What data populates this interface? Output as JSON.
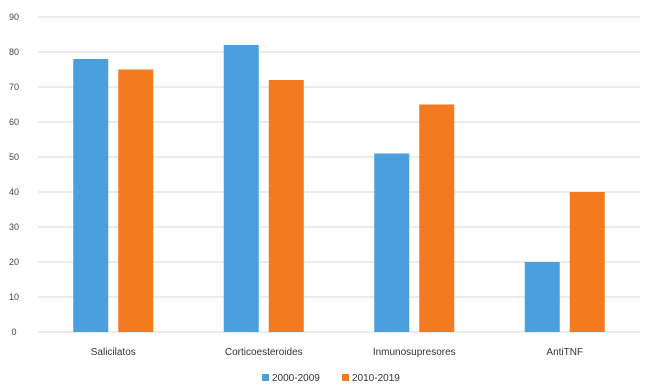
{
  "chart_data": {
    "type": "bar",
    "categories": [
      "Salicilatos",
      "Corticoesteroides",
      "Inmunosupresores",
      "AntiTNF"
    ],
    "series": [
      {
        "name": "2000-2009",
        "values": [
          78,
          82,
          51,
          20
        ],
        "color": "#4a9fdc"
      },
      {
        "name": "2010-2019",
        "values": [
          75,
          72,
          65,
          40
        ],
        "color": "#f47a1f"
      }
    ],
    "yticks": [
      "0",
      "10",
      "20",
      "30",
      "40",
      "50",
      "60",
      "70",
      "80",
      "90"
    ],
    "ylim": [
      0,
      90
    ],
    "grid": true,
    "legend_position": "bottom",
    "gridline_color": "#d9d9d9"
  }
}
